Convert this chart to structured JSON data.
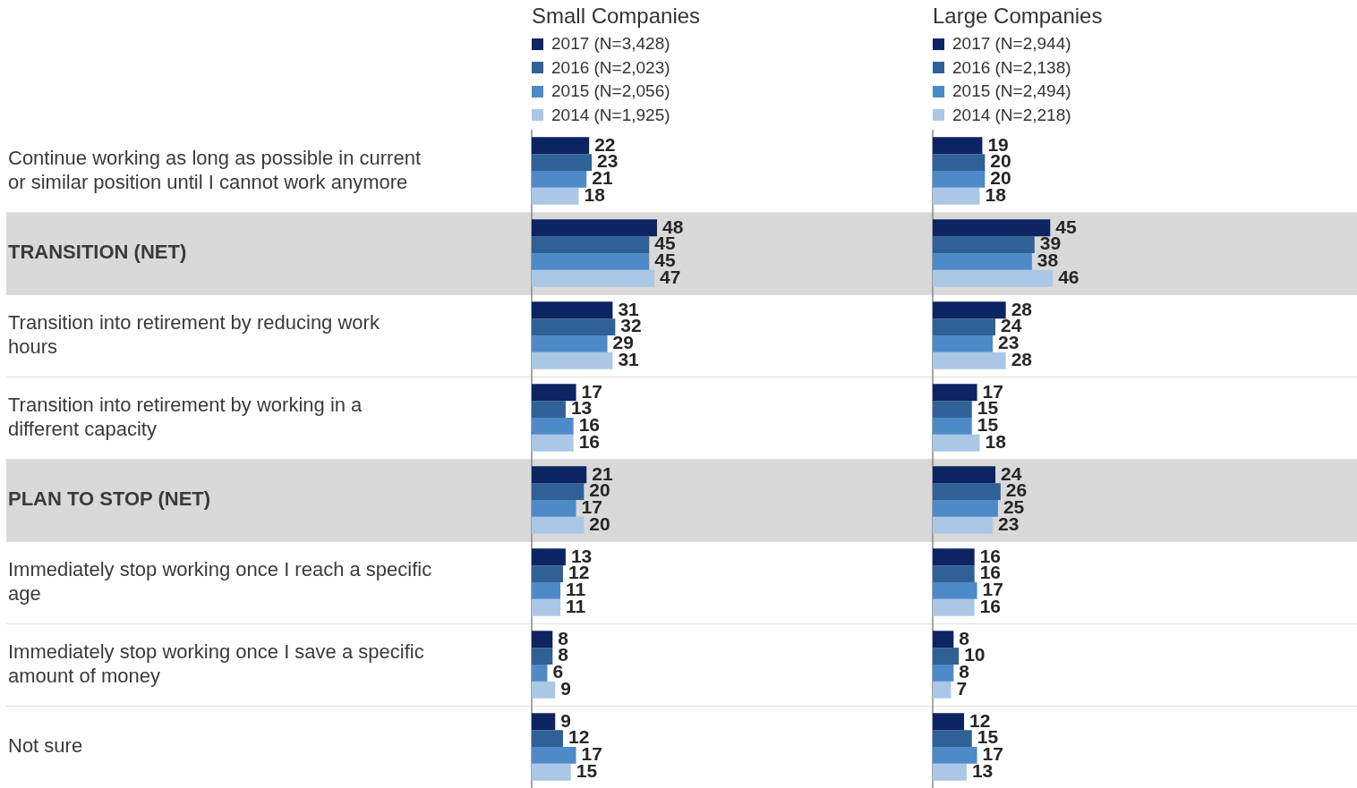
{
  "chart_data": [
    {
      "type": "bar",
      "orientation": "horizontal",
      "legend_title": "Small Companies",
      "legend": "top",
      "grid": "y",
      "tick_labels": "y",
      "data_labels": true,
      "categories": [
        "Continue working as long as possible in current or similar position until I cannot work anymore",
        "TRANSITION (NET)",
        "Transition into retirement by reducing work hours",
        "Transition into retirement by working in a different capacity",
        "PLAN TO STOP (NET)",
        "Immediately stop working once I reach a specific age",
        "Immediately stop working once I save a specific amount of money",
        "Not sure"
      ],
      "bands": [
        {
          "axis": "y",
          "from": "TRANSITION (NET)",
          "to": "TRANSITION (NET)",
          "color": "#d9d9d9"
        },
        {
          "axis": "y",
          "from": "PLAN TO STOP (NET)",
          "to": "PLAN TO STOP (NET)",
          "color": "#d9d9d9"
        }
      ],
      "series": [
        {
          "name": "2017 (N=3,428)",
          "color": "#0c2461",
          "values": [
            22,
            48,
            31,
            17,
            21,
            13,
            8,
            9
          ]
        },
        {
          "name": "2016 (N=2,023)",
          "color": "#2f6196",
          "values": [
            23,
            45,
            32,
            13,
            20,
            12,
            8,
            12
          ]
        },
        {
          "name": "2015 (N=2,056)",
          "color": "#4f8ac8",
          "values": [
            21,
            45,
            29,
            16,
            17,
            11,
            6,
            17
          ]
        },
        {
          "name": "2014 (N=1,925)",
          "color": "#aac8e6",
          "values": [
            18,
            47,
            31,
            16,
            20,
            11,
            9,
            15
          ]
        }
      ]
    },
    {
      "type": "bar",
      "orientation": "horizontal",
      "legend_title": "Large Companies",
      "legend": "top",
      "tick_labels": false,
      "data_labels": true,
      "categories": [
        null,
        null,
        null,
        null,
        null,
        null,
        null,
        null
      ],
      "series": [
        {
          "name": "2017 (N=2,944)",
          "color": "#0c2461",
          "values": [
            19,
            45,
            28,
            17,
            24,
            16,
            8,
            12
          ]
        },
        {
          "name": "2016 (N=2,138)",
          "color": "#2f6196",
          "values": [
            20,
            39,
            24,
            15,
            26,
            16,
            10,
            15
          ]
        },
        {
          "name": "2015 (N=2,494)",
          "color": "#4f8ac8",
          "values": [
            20,
            38,
            23,
            15,
            25,
            17,
            8,
            17
          ]
        },
        {
          "name": "2014 (N=2,218)",
          "color": "#aac8e6",
          "values": [
            18,
            46,
            28,
            18,
            23,
            16,
            7,
            13
          ]
        }
      ]
    }
  ]
}
